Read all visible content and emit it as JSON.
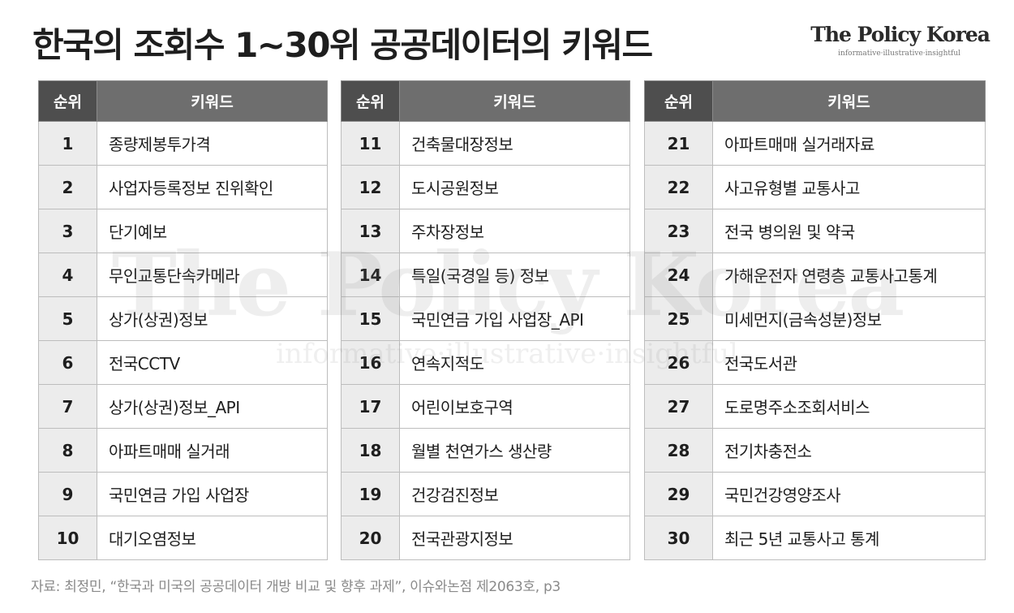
{
  "header": {
    "title": "한국의 조회수 1~30위 공공데이터의 키워드",
    "brand_name": "The Policy Korea",
    "brand_tagline": "informative·illustrative·insightful"
  },
  "watermark": {
    "name": "The Policy Korea",
    "tagline": "informative·illustrative·insightful"
  },
  "table": {
    "col_rank": "순위",
    "col_keyword": "키워드",
    "rows": [
      {
        "rank": "1",
        "keyword": "종량제봉투가격"
      },
      {
        "rank": "2",
        "keyword": "사업자등록정보 진위확인"
      },
      {
        "rank": "3",
        "keyword": "단기예보"
      },
      {
        "rank": "4",
        "keyword": "무인교통단속카메라"
      },
      {
        "rank": "5",
        "keyword": "상가(상권)정보"
      },
      {
        "rank": "6",
        "keyword": "전국CCTV"
      },
      {
        "rank": "7",
        "keyword": "상가(상권)정보_API"
      },
      {
        "rank": "8",
        "keyword": "아파트매매 실거래"
      },
      {
        "rank": "9",
        "keyword": "국민연금 가입 사업장"
      },
      {
        "rank": "10",
        "keyword": "대기오염정보"
      },
      {
        "rank": "11",
        "keyword": "건축물대장정보"
      },
      {
        "rank": "12",
        "keyword": "도시공원정보"
      },
      {
        "rank": "13",
        "keyword": "주차장정보"
      },
      {
        "rank": "14",
        "keyword": "특일(국경일 등) 정보"
      },
      {
        "rank": "15",
        "keyword": "국민연금 가입 사업장_API"
      },
      {
        "rank": "16",
        "keyword": "연속지적도"
      },
      {
        "rank": "17",
        "keyword": "어린이보호구역"
      },
      {
        "rank": "18",
        "keyword": "월별 천연가스 생산량"
      },
      {
        "rank": "19",
        "keyword": "건강검진정보"
      },
      {
        "rank": "20",
        "keyword": "전국관광지정보"
      },
      {
        "rank": "21",
        "keyword": "아파트매매 실거래자료"
      },
      {
        "rank": "22",
        "keyword": "사고유형별 교통사고"
      },
      {
        "rank": "23",
        "keyword": "전국 병의원 및 약국"
      },
      {
        "rank": "24",
        "keyword": "가해운전자 연령층 교통사고통계"
      },
      {
        "rank": "25",
        "keyword": "미세먼지(금속성분)정보"
      },
      {
        "rank": "26",
        "keyword": "전국도서관"
      },
      {
        "rank": "27",
        "keyword": "도로명주소조회서비스"
      },
      {
        "rank": "28",
        "keyword": "전기차충전소"
      },
      {
        "rank": "29",
        "keyword": "국민건강영양조사"
      },
      {
        "rank": "30",
        "keyword": "최근 5년 교통사고 통계"
      }
    ]
  },
  "footer": {
    "source": "자료: 최정민, “한국과 미국의 공공데이터 개방 비교 및 향후 과제”, 이슈와논점 제2063호, p3"
  },
  "colors": {
    "header_rank_bg": "#4e4e4e",
    "header_keyword_bg": "#6e6e6e",
    "rank_cell_bg": "#ececec",
    "keyword_cell_bg": "#ffffff"
  }
}
